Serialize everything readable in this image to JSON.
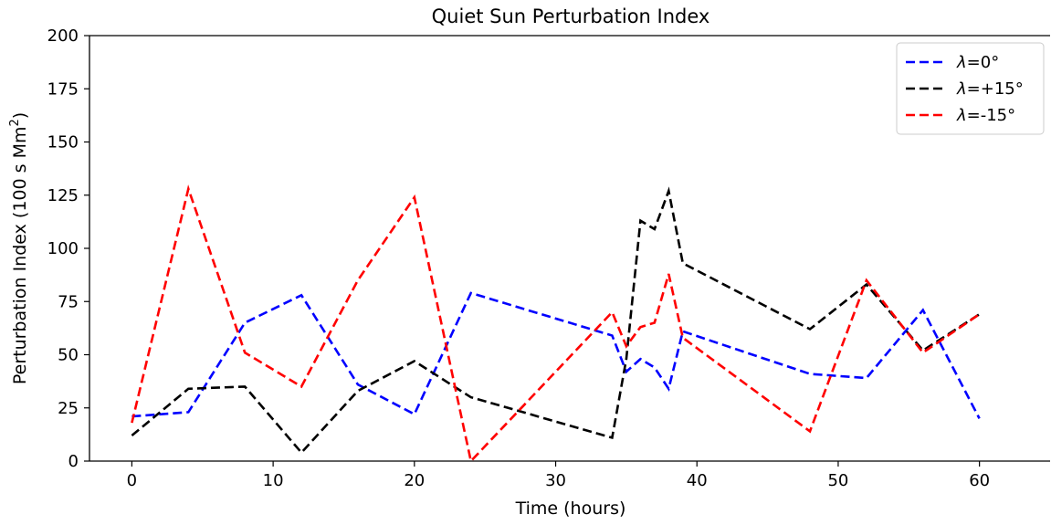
{
  "chart_data": {
    "type": "line",
    "title": "Quiet Sun Perturbation Index",
    "xlabel": "Time (hours)",
    "ylabel": "Perturbation Index (100 s Mm",
    "ylabel_sup": "2",
    "ylabel_close": ")",
    "xlim": [
      -3,
      65
    ],
    "ylim": [
      0,
      200
    ],
    "xticks": [
      0,
      10,
      20,
      30,
      40,
      50,
      60
    ],
    "yticks": [
      0,
      25,
      50,
      75,
      100,
      125,
      150,
      175,
      200
    ],
    "legend_position": "top-right",
    "series": [
      {
        "name_symbol": "λ",
        "name_value": "=0°",
        "color": "#0000ff",
        "style": "dashed",
        "x": [
          0,
          4,
          8,
          12,
          16,
          20,
          24,
          34,
          35,
          36,
          37,
          38,
          39,
          48,
          52,
          56,
          60
        ],
        "y": [
          21,
          23,
          65,
          78,
          36,
          22,
          79,
          59,
          42,
          48,
          44,
          34,
          61,
          41,
          39,
          71,
          20
        ]
      },
      {
        "name_symbol": "λ",
        "name_value": "=+15°",
        "color": "#000000",
        "style": "dashed",
        "x": [
          0,
          4,
          8,
          12,
          16,
          20,
          24,
          34,
          35,
          36,
          37,
          38,
          39,
          48,
          52,
          56,
          60
        ],
        "y": [
          12,
          34,
          35,
          4,
          33,
          47,
          30,
          11,
          48,
          113,
          109,
          127,
          93,
          62,
          83,
          52,
          69
        ]
      },
      {
        "name_symbol": "λ",
        "name_value": "=-15°",
        "color": "#ff0000",
        "style": "dashed",
        "x": [
          0,
          4,
          8,
          12,
          16,
          20,
          24,
          34,
          35,
          36,
          37,
          38,
          39,
          48,
          52,
          56,
          60
        ],
        "y": [
          18,
          128,
          51,
          35,
          85,
          124,
          0,
          70,
          54,
          63,
          65,
          88,
          58,
          14,
          85,
          51,
          69
        ]
      }
    ]
  }
}
